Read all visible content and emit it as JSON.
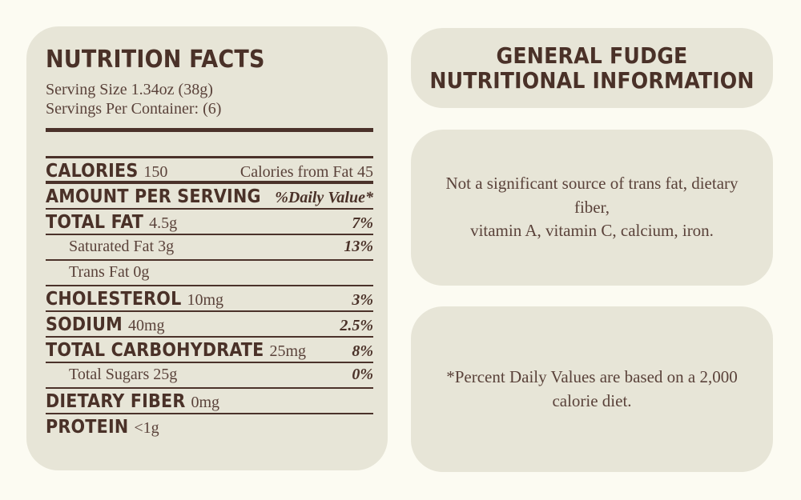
{
  "theme": {
    "page_bg": "#fcfbf2",
    "panel_bg": "#e7e5d7",
    "text_dark_brown": "#4a3128",
    "text_serif_brown": "#5a423a",
    "rule_color": "#4b322a"
  },
  "label": {
    "title": "NUTRITION FACTS",
    "serving_size": "Serving Size 1.34oz (38g)",
    "servings_per_container": "Servings Per Container: (6)",
    "rows": [
      {
        "name": "CALORIES",
        "amount": "150",
        "right": "Calories from Fat 45"
      },
      {
        "name": "AMOUNT PER SERVING",
        "amount": "",
        "right": "%Daily Value*"
      },
      {
        "name": "TOTAL FAT",
        "amount": "4.5g",
        "right": "7%"
      },
      {
        "name": "Saturated Fat 3g",
        "amount": "",
        "right": "13%"
      },
      {
        "name": "Trans Fat 0g",
        "amount": "",
        "right": ""
      },
      {
        "name": "CHOLESTEROL",
        "amount": "10mg",
        "right": "3%"
      },
      {
        "name": "SODIUM",
        "amount": "40mg",
        "right": "2.5%"
      },
      {
        "name": "TOTAL CARBOHYDRATE",
        "amount": "25mg",
        "right": "8%"
      },
      {
        "name": "Total Sugars 25g",
        "amount": "",
        "right": "0%"
      },
      {
        "name": "DIETARY FIBER",
        "amount": "0mg",
        "right": ""
      },
      {
        "name": "PROTEIN",
        "amount": "<1g",
        "right": ""
      }
    ]
  },
  "info": {
    "title_line1": "GENERAL FUDGE",
    "title_line2": "NUTRITIONAL INFORMATION",
    "note_line1": "Not a significant source of trans fat, dietary fiber,",
    "note_line2": "vitamin A, vitamin C, calcium, iron.",
    "footnote_line1": "*Percent Daily Values are based on a 2,000",
    "footnote_line2": "calorie diet."
  }
}
